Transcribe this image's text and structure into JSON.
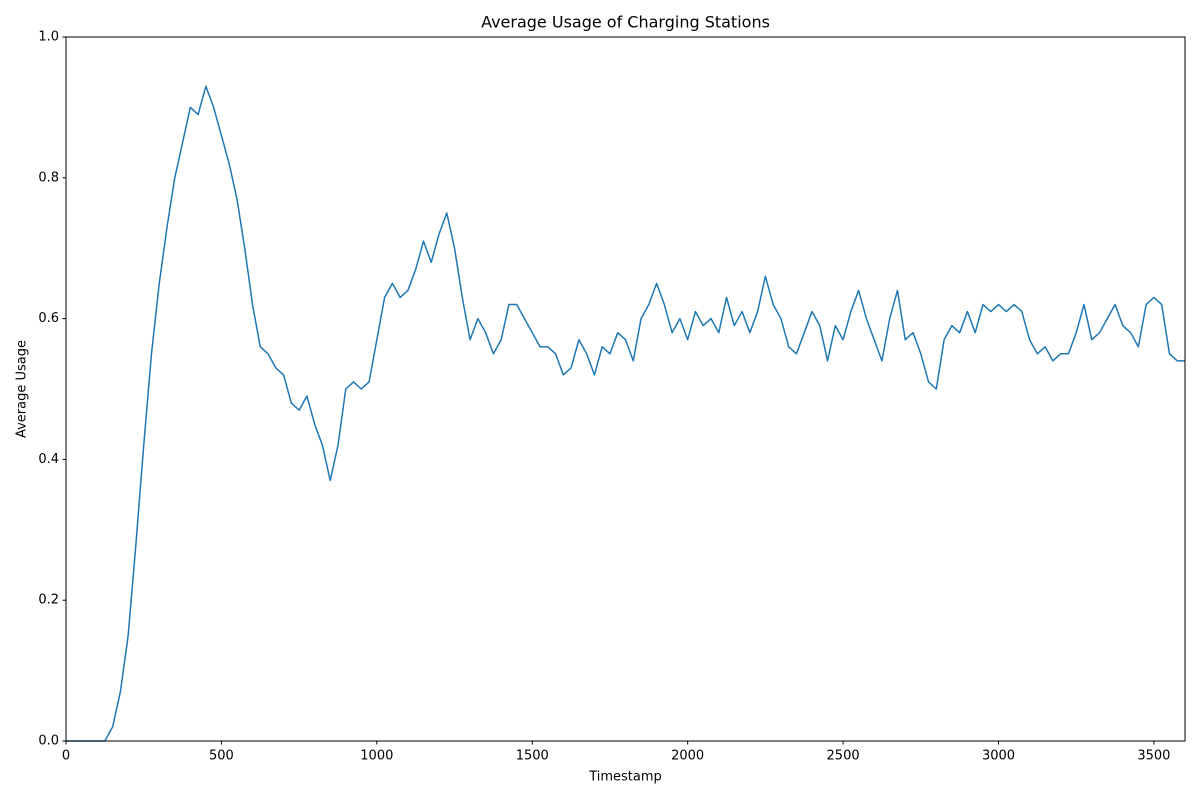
{
  "chart_data": {
    "type": "line",
    "title": "Average Usage of Charging Stations",
    "x_label": "Timestamp",
    "y_label": "Average Usage",
    "color": "#1f77b4",
    "xlim": [
      0,
      3600
    ],
    "ylim": [
      0,
      1
    ],
    "xticks": [
      0,
      500,
      1000,
      1500,
      2000,
      2500,
      3000,
      3500
    ],
    "yticks": [
      {
        "value": 0,
        "label": "0.0"
      },
      0.2,
      0.4,
      0.6,
      0.8,
      {
        "value": 1,
        "label": "1.0"
      }
    ],
    "x": [
      0,
      25,
      50,
      75,
      100,
      125,
      150,
      175,
      200,
      225,
      250,
      275,
      300,
      325,
      350,
      375,
      400,
      425,
      450,
      475,
      500,
      525,
      550,
      575,
      600,
      625,
      650,
      675,
      700,
      725,
      750,
      775,
      800,
      825,
      850,
      875,
      900,
      925,
      950,
      975,
      1000,
      1025,
      1050,
      1075,
      1100,
      1125,
      1150,
      1175,
      1200,
      1225,
      1250,
      1275,
      1300,
      1325,
      1350,
      1375,
      1400,
      1425,
      1450,
      1475,
      1500,
      1525,
      1550,
      1575,
      1600,
      1625,
      1650,
      1675,
      1700,
      1725,
      1750,
      1775,
      1800,
      1825,
      1850,
      1875,
      1900,
      1925,
      1950,
      1975,
      2000,
      2025,
      2050,
      2075,
      2100,
      2125,
      2150,
      2175,
      2200,
      2225,
      2250,
      2275,
      2300,
      2325,
      2350,
      2375,
      2400,
      2425,
      2450,
      2475,
      2500,
      2525,
      2550,
      2575,
      2600,
      2625,
      2650,
      2675,
      2700,
      2725,
      2750,
      2775,
      2800,
      2825,
      2850,
      2875,
      2900,
      2925,
      2950,
      2975,
      3000,
      3025,
      3050,
      3075,
      3100,
      3125,
      3150,
      3175,
      3200,
      3225,
      3250,
      3275,
      3300,
      3325,
      3350,
      3375,
      3400,
      3425,
      3450,
      3475,
      3500,
      3525,
      3550,
      3575,
      3600
    ],
    "values": [
      0,
      0,
      0,
      0,
      0,
      0,
      0.02,
      0.07,
      0.15,
      0.28,
      0.42,
      0.55,
      0.65,
      0.73,
      0.8,
      0.85,
      0.9,
      0.89,
      0.93,
      0.9,
      0.86,
      0.82,
      0.77,
      0.7,
      0.62,
      0.56,
      0.55,
      0.53,
      0.52,
      0.48,
      0.47,
      0.49,
      0.45,
      0.42,
      0.37,
      0.42,
      0.5,
      0.51,
      0.5,
      0.51,
      0.57,
      0.63,
      0.65,
      0.63,
      0.64,
      0.67,
      0.71,
      0.68,
      0.72,
      0.75,
      0.7,
      0.63,
      0.57,
      0.6,
      0.58,
      0.55,
      0.57,
      0.62,
      0.62,
      0.6,
      0.58,
      0.56,
      0.56,
      0.55,
      0.52,
      0.53,
      0.57,
      0.55,
      0.52,
      0.56,
      0.55,
      0.58,
      0.57,
      0.54,
      0.6,
      0.62,
      0.65,
      0.62,
      0.58,
      0.6,
      0.57,
      0.61,
      0.59,
      0.6,
      0.58,
      0.63,
      0.59,
      0.61,
      0.58,
      0.61,
      0.66,
      0.62,
      0.6,
      0.56,
      0.55,
      0.58,
      0.61,
      0.59,
      0.54,
      0.59,
      0.57,
      0.61,
      0.64,
      0.6,
      0.57,
      0.54,
      0.6,
      0.64,
      0.57,
      0.58,
      0.55,
      0.51,
      0.5,
      0.57,
      0.59,
      0.58,
      0.61,
      0.58,
      0.62,
      0.61,
      0.62,
      0.61,
      0.62,
      0.61,
      0.57,
      0.55,
      0.56,
      0.54,
      0.55,
      0.55,
      0.58,
      0.62,
      0.57,
      0.58,
      0.6,
      0.62,
      0.59,
      0.58,
      0.56,
      0.62,
      0.63,
      0.62,
      0.55,
      0.54,
      0.54
    ]
  }
}
